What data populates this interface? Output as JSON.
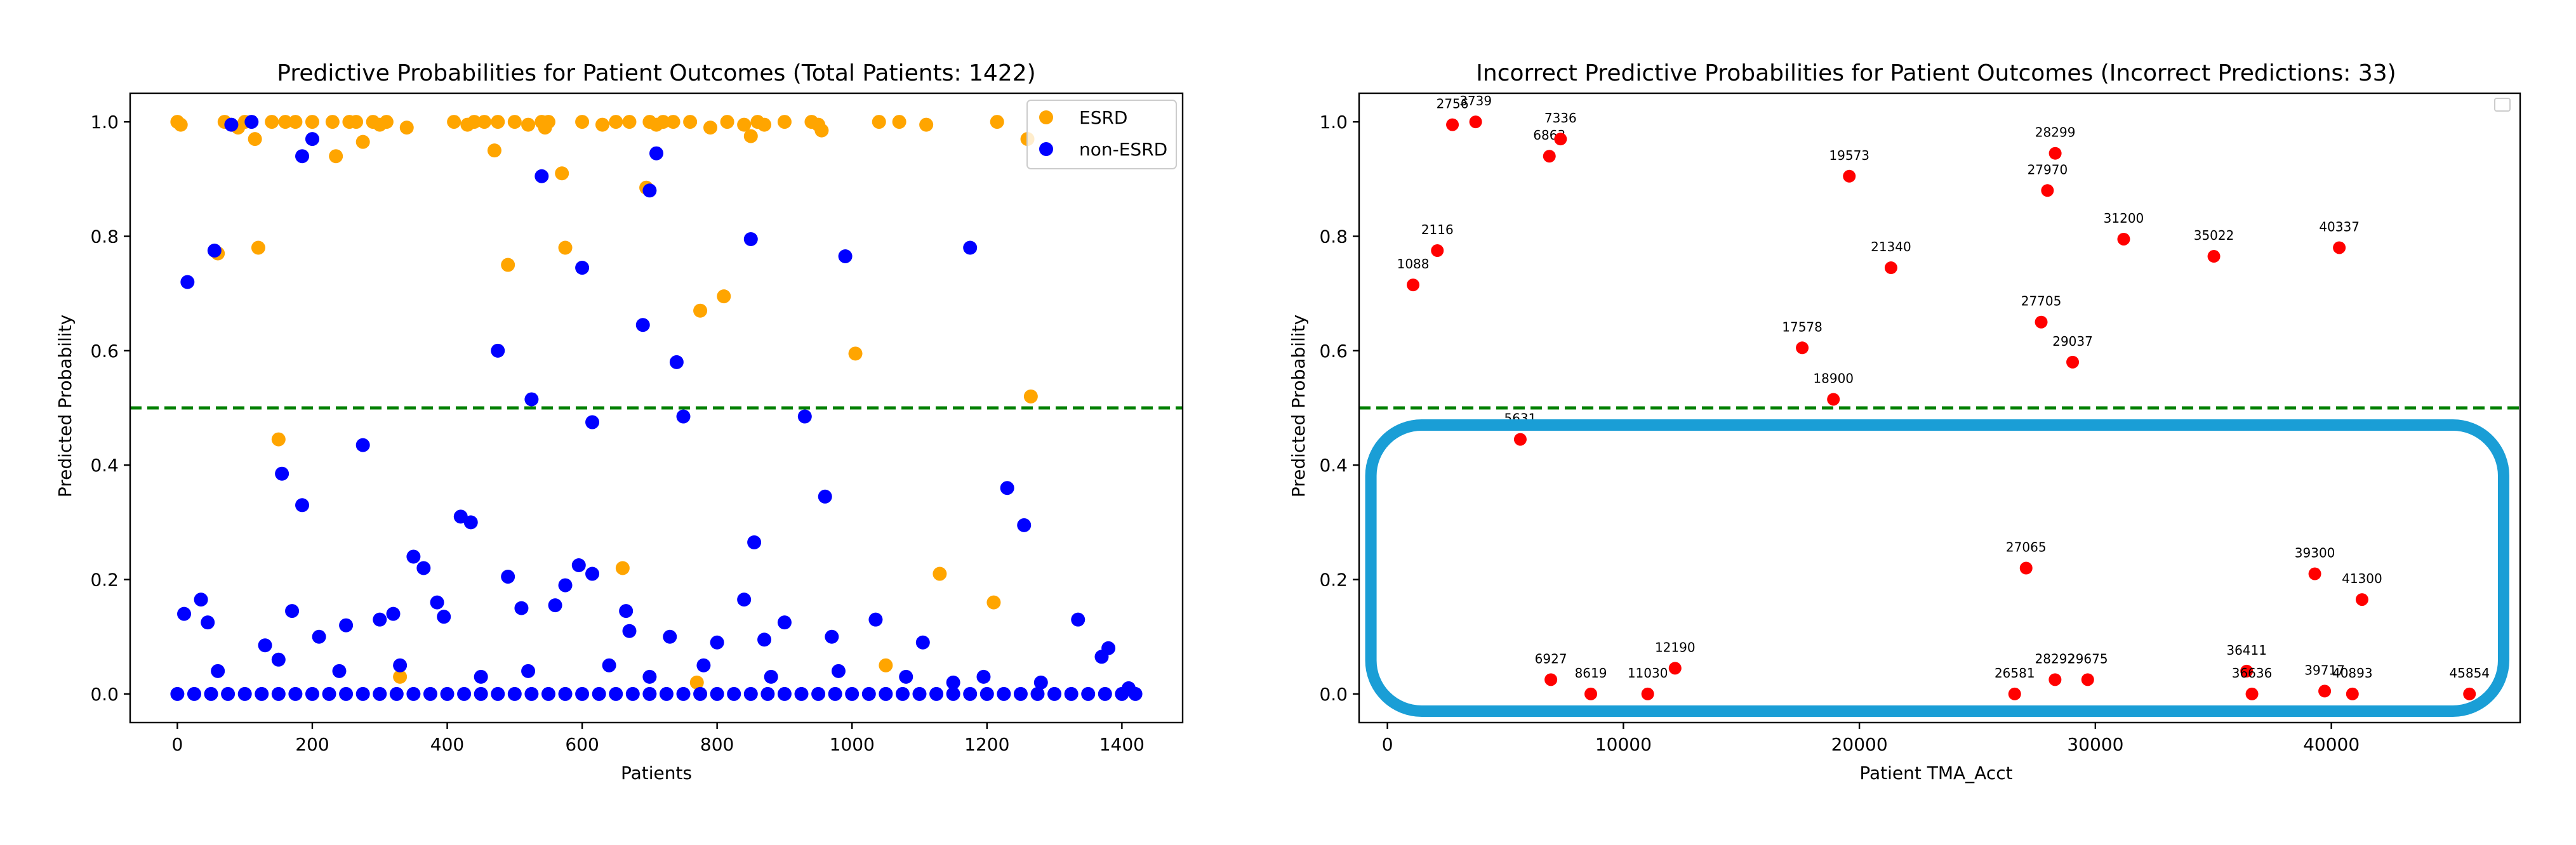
{
  "colors": {
    "esrd": "#ffa500",
    "non_esrd": "#0000ff",
    "incorrect": "#ff0000",
    "threshold": "#008000",
    "highlight": "#1a9ed6"
  },
  "chart_data": [
    {
      "type": "scatter",
      "title": "Predictive Probabilities for Patient Outcomes (Total Patients: 1422)",
      "xlabel": "Patients",
      "ylabel": "Predicted Probability",
      "xlim": [
        -70,
        1490
      ],
      "ylim": [
        -0.05,
        1.05
      ],
      "xticks": [
        0,
        200,
        400,
        600,
        800,
        1000,
        1200,
        1400
      ],
      "yticks": [
        0.0,
        0.2,
        0.4,
        0.6,
        0.8,
        1.0
      ],
      "xtick_labels": [
        "0",
        "200",
        "400",
        "600",
        "800",
        "1000",
        "1200",
        "1400"
      ],
      "ytick_labels": [
        "0.0",
        "0.2",
        "0.4",
        "0.6",
        "0.8",
        "1.0"
      ],
      "threshold": 0.5,
      "legend": {
        "position": "top-right",
        "entries": [
          "ESRD",
          "non-ESRD"
        ]
      },
      "series": [
        {
          "name": "ESRD",
          "points": [
            [
              0,
              1.0
            ],
            [
              5,
              0.995
            ],
            [
              60,
              0.77
            ],
            [
              70,
              1.0
            ],
            [
              90,
              0.99
            ],
            [
              100,
              1.0
            ],
            [
              115,
              0.97
            ],
            [
              120,
              0.78
            ],
            [
              140,
              1.0
            ],
            [
              150,
              0.445
            ],
            [
              160,
              1.0
            ],
            [
              175,
              1.0
            ],
            [
              200,
              1.0
            ],
            [
              230,
              1.0
            ],
            [
              235,
              0.94
            ],
            [
              255,
              1.0
            ],
            [
              265,
              1.0
            ],
            [
              275,
              0.965
            ],
            [
              290,
              1.0
            ],
            [
              300,
              0.995
            ],
            [
              310,
              1.0
            ],
            [
              340,
              0.99
            ],
            [
              410,
              1.0
            ],
            [
              430,
              0.995
            ],
            [
              440,
              1.0
            ],
            [
              455,
              1.0
            ],
            [
              470,
              0.95
            ],
            [
              475,
              1.0
            ],
            [
              490,
              0.75
            ],
            [
              500,
              1.0
            ],
            [
              520,
              0.995
            ],
            [
              540,
              1.0
            ],
            [
              545,
              0.99
            ],
            [
              550,
              1.0
            ],
            [
              570,
              0.91
            ],
            [
              575,
              0.78
            ],
            [
              600,
              1.0
            ],
            [
              630,
              0.995
            ],
            [
              650,
              1.0
            ],
            [
              660,
              0.22
            ],
            [
              670,
              1.0
            ],
            [
              695,
              0.885
            ],
            [
              700,
              1.0
            ],
            [
              710,
              0.995
            ],
            [
              720,
              1.0
            ],
            [
              735,
              1.0
            ],
            [
              760,
              1.0
            ],
            [
              775,
              0.67
            ],
            [
              790,
              0.99
            ],
            [
              810,
              0.695
            ],
            [
              815,
              1.0
            ],
            [
              840,
              0.995
            ],
            [
              850,
              0.975
            ],
            [
              860,
              1.0
            ],
            [
              870,
              0.995
            ],
            [
              900,
              1.0
            ],
            [
              940,
              1.0
            ],
            [
              950,
              0.995
            ],
            [
              955,
              0.985
            ],
            [
              1005,
              0.595
            ],
            [
              1040,
              1.0
            ],
            [
              1050,
              0.05
            ],
            [
              1070,
              1.0
            ],
            [
              1110,
              0.995
            ],
            [
              1130,
              0.21
            ],
            [
              1210,
              0.16
            ],
            [
              1215,
              1.0
            ],
            [
              1260,
              0.97
            ],
            [
              1265,
              0.52
            ],
            [
              330,
              0.03
            ],
            [
              770,
              0.02
            ]
          ]
        },
        {
          "name": "non-ESRD",
          "points": [
            [
              15,
              0.72
            ],
            [
              55,
              0.775
            ],
            [
              80,
              0.995
            ],
            [
              110,
              1.0
            ],
            [
              185,
              0.94
            ],
            [
              200,
              0.97
            ],
            [
              210,
              0.1
            ],
            [
              275,
              0.435
            ],
            [
              155,
              0.385
            ],
            [
              185,
              0.33
            ],
            [
              475,
              0.6
            ],
            [
              525,
              0.515
            ],
            [
              540,
              0.905
            ],
            [
              600,
              0.745
            ],
            [
              615,
              0.475
            ],
            [
              690,
              0.645
            ],
            [
              700,
              0.88
            ],
            [
              710,
              0.945
            ],
            [
              740,
              0.58
            ],
            [
              750,
              0.485
            ],
            [
              850,
              0.795
            ],
            [
              855,
              0.265
            ],
            [
              930,
              0.485
            ],
            [
              990,
              0.765
            ],
            [
              960,
              0.345
            ],
            [
              1175,
              0.78
            ],
            [
              1230,
              0.36
            ],
            [
              1255,
              0.295
            ],
            [
              1335,
              0.13
            ],
            [
              1370,
              0.065
            ],
            [
              1380,
              0.08
            ],
            [
              35,
              0.165
            ],
            [
              45,
              0.125
            ],
            [
              130,
              0.085
            ],
            [
              170,
              0.145
            ],
            [
              250,
              0.12
            ],
            [
              300,
              0.13
            ],
            [
              320,
              0.14
            ],
            [
              350,
              0.24
            ],
            [
              365,
              0.22
            ],
            [
              385,
              0.16
            ],
            [
              395,
              0.135
            ],
            [
              420,
              0.31
            ],
            [
              435,
              0.3
            ],
            [
              490,
              0.205
            ],
            [
              510,
              0.15
            ],
            [
              560,
              0.155
            ],
            [
              575,
              0.19
            ],
            [
              595,
              0.225
            ],
            [
              615,
              0.21
            ],
            [
              665,
              0.145
            ],
            [
              670,
              0.11
            ],
            [
              730,
              0.1
            ],
            [
              800,
              0.09
            ],
            [
              840,
              0.165
            ],
            [
              870,
              0.095
            ],
            [
              900,
              0.125
            ],
            [
              970,
              0.1
            ],
            [
              1035,
              0.13
            ],
            [
              1105,
              0.09
            ],
            [
              1195,
              0.03
            ],
            [
              10,
              0.14
            ],
            [
              60,
              0.04
            ],
            [
              150,
              0.06
            ],
            [
              240,
              0.04
            ],
            [
              330,
              0.05
            ],
            [
              450,
              0.03
            ],
            [
              520,
              0.04
            ],
            [
              640,
              0.05
            ],
            [
              700,
              0.03
            ],
            [
              780,
              0.05
            ],
            [
              880,
              0.03
            ],
            [
              980,
              0.04
            ],
            [
              1080,
              0.03
            ],
            [
              1150,
              0.02
            ],
            [
              1280,
              0.02
            ],
            [
              1410,
              0.01
            ],
            [
              0,
              0.0
            ],
            [
              25,
              0.0
            ],
            [
              50,
              0.0
            ],
            [
              75,
              0.0
            ],
            [
              100,
              0.0
            ],
            [
              125,
              0.0
            ],
            [
              150,
              0.0
            ],
            [
              175,
              0.0
            ],
            [
              200,
              0.0
            ],
            [
              225,
              0.0
            ],
            [
              250,
              0.0
            ],
            [
              275,
              0.0
            ],
            [
              300,
              0.0
            ],
            [
              325,
              0.0
            ],
            [
              350,
              0.0
            ],
            [
              375,
              0.0
            ],
            [
              400,
              0.0
            ],
            [
              425,
              0.0
            ],
            [
              450,
              0.0
            ],
            [
              475,
              0.0
            ],
            [
              500,
              0.0
            ],
            [
              525,
              0.0
            ],
            [
              550,
              0.0
            ],
            [
              575,
              0.0
            ],
            [
              600,
              0.0
            ],
            [
              625,
              0.0
            ],
            [
              650,
              0.0
            ],
            [
              675,
              0.0
            ],
            [
              700,
              0.0
            ],
            [
              725,
              0.0
            ],
            [
              750,
              0.0
            ],
            [
              775,
              0.0
            ],
            [
              800,
              0.0
            ],
            [
              825,
              0.0
            ],
            [
              850,
              0.0
            ],
            [
              875,
              0.0
            ],
            [
              900,
              0.0
            ],
            [
              925,
              0.0
            ],
            [
              950,
              0.0
            ],
            [
              975,
              0.0
            ],
            [
              1000,
              0.0
            ],
            [
              1025,
              0.0
            ],
            [
              1050,
              0.0
            ],
            [
              1075,
              0.0
            ],
            [
              1100,
              0.0
            ],
            [
              1125,
              0.0
            ],
            [
              1150,
              0.0
            ],
            [
              1175,
              0.0
            ],
            [
              1200,
              0.0
            ],
            [
              1225,
              0.0
            ],
            [
              1250,
              0.0
            ],
            [
              1275,
              0.0
            ],
            [
              1300,
              0.0
            ],
            [
              1325,
              0.0
            ],
            [
              1350,
              0.0
            ],
            [
              1375,
              0.0
            ],
            [
              1400,
              0.0
            ],
            [
              1420,
              0.0
            ]
          ]
        }
      ]
    },
    {
      "type": "scatter",
      "title": "Incorrect Predictive Probabilities for Patient Outcomes (Incorrect Predictions: 33)",
      "xlabel": "Patient TMA_Acct",
      "ylabel": "Predicted Probability",
      "xlim": [
        -1200,
        48000
      ],
      "ylim": [
        -0.05,
        1.05
      ],
      "xticks": [
        0,
        10000,
        20000,
        30000,
        40000
      ],
      "yticks": [
        0.0,
        0.2,
        0.4,
        0.6,
        0.8,
        1.0
      ],
      "xtick_labels": [
        "0",
        "10000",
        "20000",
        "30000",
        "40000"
      ],
      "ytick_labels": [
        "0.0",
        "0.2",
        "0.4",
        "0.6",
        "0.8",
        "1.0"
      ],
      "threshold": 0.5,
      "legend": {
        "position": "top-right",
        "entries": []
      },
      "points": [
        {
          "label": "1088",
          "x": 1088,
          "y": 0.715
        },
        {
          "label": "2116",
          "x": 2116,
          "y": 0.775
        },
        {
          "label": "2756",
          "x": 2756,
          "y": 0.995
        },
        {
          "label": "3739",
          "x": 3739,
          "y": 1.0
        },
        {
          "label": "5631",
          "x": 5631,
          "y": 0.445
        },
        {
          "label": "6863",
          "x": 6863,
          "y": 0.94
        },
        {
          "label": "6927",
          "x": 6927,
          "y": 0.025
        },
        {
          "label": "7336",
          "x": 7336,
          "y": 0.97
        },
        {
          "label": "8619",
          "x": 8619,
          "y": 0.0
        },
        {
          "label": "11030",
          "x": 11030,
          "y": 0.0
        },
        {
          "label": "12190",
          "x": 12190,
          "y": 0.045
        },
        {
          "label": "17578",
          "x": 17578,
          "y": 0.605
        },
        {
          "label": "18900",
          "x": 18900,
          "y": 0.515
        },
        {
          "label": "19573",
          "x": 19573,
          "y": 0.905
        },
        {
          "label": "21340",
          "x": 21340,
          "y": 0.745
        },
        {
          "label": "26581",
          "x": 26581,
          "y": 0.0
        },
        {
          "label": "27065",
          "x": 27065,
          "y": 0.22
        },
        {
          "label": "27705",
          "x": 27705,
          "y": 0.65
        },
        {
          "label": "27970",
          "x": 27970,
          "y": 0.88
        },
        {
          "label": "28292",
          "x": 28292,
          "y": 0.025
        },
        {
          "label": "28299",
          "x": 28299,
          "y": 0.945
        },
        {
          "label": "29037",
          "x": 29037,
          "y": 0.58
        },
        {
          "label": "29675",
          "x": 29675,
          "y": 0.025
        },
        {
          "label": "31200",
          "x": 31200,
          "y": 0.795
        },
        {
          "label": "35022",
          "x": 35022,
          "y": 0.765
        },
        {
          "label": "36411",
          "x": 36411,
          "y": 0.04
        },
        {
          "label": "36636",
          "x": 36636,
          "y": 0.0
        },
        {
          "label": "39300",
          "x": 39300,
          "y": 0.21
        },
        {
          "label": "39717",
          "x": 39717,
          "y": 0.005
        },
        {
          "label": "40337",
          "x": 40337,
          "y": 0.78
        },
        {
          "label": "40893",
          "x": 40893,
          "y": 0.0
        },
        {
          "label": "41300",
          "x": 41300,
          "y": 0.165
        },
        {
          "label": "45854",
          "x": 45854,
          "y": 0.0
        }
      ],
      "highlight_box": {
        "x_range": [
          -700,
          47300
        ],
        "y_range": [
          -0.03,
          0.47
        ],
        "description": "rounded highlight around predictions below threshold"
      }
    }
  ]
}
